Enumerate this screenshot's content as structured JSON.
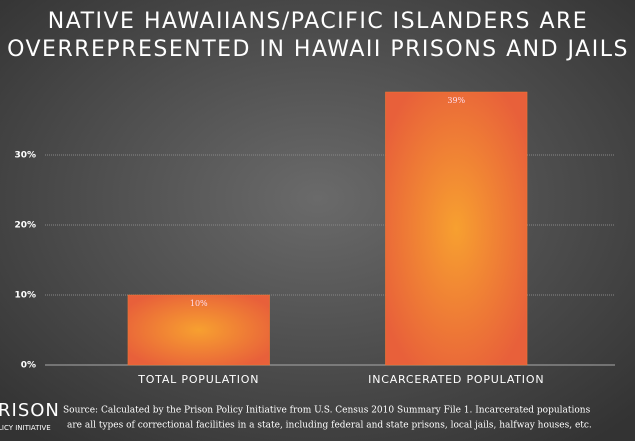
{
  "chart_data": {
    "type": "bar",
    "title": [
      "NATIVE HAWAIIANS/PACIFIC ISLANDERS ARE",
      "OVERREPRESENTED IN HAWAII PRISONS AND JAILS"
    ],
    "categories": [
      "TOTAL POPULATION",
      "INCARCERATED POPULATION"
    ],
    "values": [
      10,
      39
    ],
    "value_labels": [
      "10%",
      "39%"
    ],
    "color": "#f07a32",
    "ylim": [
      0,
      40
    ],
    "yticks": [
      {
        "value": 0,
        "label": "0%"
      },
      {
        "value": 10,
        "label": "10%"
      },
      {
        "value": 20,
        "label": "20%"
      },
      {
        "value": 30,
        "label": "30%"
      }
    ],
    "grid": true,
    "source": [
      "Source: Calculated by the Prison Policy Initiative from U.S. Census 2010 Summary File 1. Incarcerated populations",
      "are all types of correctional facilities in a state, including federal and state prisons, local jails, halfway houses, etc."
    ],
    "logo": [
      "RISON",
      "LICY INITIATIVE"
    ]
  }
}
